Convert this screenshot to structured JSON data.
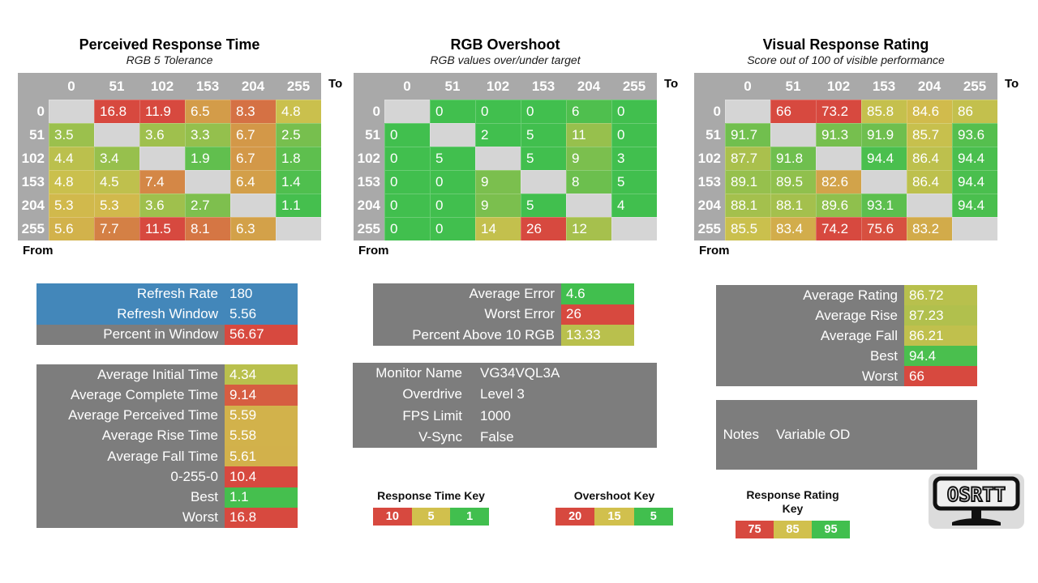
{
  "palette": {
    "green": "#41bf4e",
    "yellow": "#d1c04d",
    "red": "#d7493f",
    "blue": "#4387ba",
    "box_gray": "#7d7d7d",
    "header_gray": "#a9a9a9",
    "diagonal_gray": "#d5d5d5",
    "logo_bg": "#dcdcdc"
  },
  "chart_data": [
    {
      "type": "heatmap",
      "title": "Perceived Response Time",
      "subtitle": "RGB 5 Tolerance",
      "x_label": "To",
      "y_label": "From",
      "categories": [
        "0",
        "51",
        "102",
        "153",
        "204",
        "255"
      ],
      "color_stops": [
        [
          1,
          "#41bf4e"
        ],
        [
          5,
          "#d1c04d"
        ],
        [
          10,
          "#d7493f"
        ]
      ],
      "rows": [
        [
          null,
          16.8,
          11.9,
          6.5,
          8.3,
          4.8
        ],
        [
          3.5,
          null,
          3.6,
          3.3,
          6.7,
          2.5
        ],
        [
          4.4,
          3.4,
          null,
          1.9,
          6.7,
          1.8
        ],
        [
          4.8,
          4.5,
          7.4,
          null,
          6.4,
          1.4
        ],
        [
          5.3,
          5.3,
          3.6,
          2.7,
          null,
          1.1
        ],
        [
          5.6,
          7.7,
          11.5,
          8.1,
          6.3,
          null
        ]
      ]
    },
    {
      "type": "heatmap",
      "title": "RGB Overshoot",
      "subtitle": "RGB values over/under target",
      "x_label": "To",
      "y_label": "From",
      "categories": [
        "0",
        "51",
        "102",
        "153",
        "204",
        "255"
      ],
      "color_stops": [
        [
          5,
          "#41bf4e"
        ],
        [
          15,
          "#d1c04d"
        ],
        [
          20,
          "#d7493f"
        ]
      ],
      "rows": [
        [
          null,
          0,
          0,
          0,
          6,
          0
        ],
        [
          0,
          null,
          2,
          5,
          11,
          0
        ],
        [
          0,
          5,
          null,
          5,
          9,
          3
        ],
        [
          0,
          0,
          9,
          null,
          8,
          5
        ],
        [
          0,
          0,
          9,
          5,
          null,
          4
        ],
        [
          0,
          0,
          14,
          26,
          12,
          null
        ]
      ]
    },
    {
      "type": "heatmap",
      "title": "Visual Response Rating",
      "subtitle": "Score out of 100 of visible performance",
      "x_label": "To",
      "y_label": "From",
      "categories": [
        "0",
        "51",
        "102",
        "153",
        "204",
        "255"
      ],
      "color_stops": [
        [
          75,
          "#d7493f"
        ],
        [
          85,
          "#d1c04d"
        ],
        [
          95,
          "#41bf4e"
        ]
      ],
      "rows": [
        [
          null,
          66,
          73.2,
          85.8,
          84.6,
          86
        ],
        [
          91.7,
          null,
          91.3,
          91.9,
          85.7,
          93.6
        ],
        [
          87.7,
          91.8,
          null,
          94.4,
          86.4,
          94.4
        ],
        [
          89.1,
          89.5,
          82.6,
          null,
          86.4,
          94.4
        ],
        [
          88.1,
          88.1,
          89.6,
          93.1,
          null,
          94.4
        ],
        [
          85.5,
          83.4,
          74.2,
          75.6,
          83.2,
          null
        ]
      ]
    }
  ],
  "summary_boxes": {
    "refresh": {
      "rows": [
        {
          "label": "Refresh Rate",
          "value": "180",
          "row_bg": "blue"
        },
        {
          "label": "Refresh Window",
          "value": "5.56",
          "row_bg": "blue"
        },
        {
          "label": "Percent in Window",
          "value": "56.67",
          "value_bg": "red"
        }
      ]
    },
    "times": {
      "scale": 0,
      "rows": [
        {
          "label": "Average Initial Time",
          "value": 4.34
        },
        {
          "label": "Average Complete Time",
          "value": 9.14
        },
        {
          "label": "Average Perceived Time",
          "value": 5.59
        },
        {
          "label": "Average Rise Time",
          "value": 5.58
        },
        {
          "label": "Average Fall Time",
          "value": 5.61
        },
        {
          "label": "0-255-0",
          "value": 10.4
        },
        {
          "label": "Best",
          "value": 1.1
        },
        {
          "label": "Worst",
          "value": 16.8
        }
      ]
    },
    "overshoot": {
      "scale": 1,
      "rows": [
        {
          "label": "Average Error",
          "value": 4.6
        },
        {
          "label": "Worst Error",
          "value": 26
        },
        {
          "label": "Percent Above 10 RGB",
          "value": 13.33
        }
      ]
    },
    "monitor": {
      "rows": [
        {
          "label": "Monitor Name",
          "value": "VG34VQL3A"
        },
        {
          "label": "Overdrive",
          "value": "Level 3"
        },
        {
          "label": "FPS Limit",
          "value": "1000"
        },
        {
          "label": "V-Sync",
          "value": "False"
        }
      ]
    },
    "rating": {
      "scale": 2,
      "rows": [
        {
          "label": "Average Rating",
          "value": 86.72
        },
        {
          "label": "Average Rise",
          "value": 87.23
        },
        {
          "label": "Average Fall",
          "value": 86.21
        },
        {
          "label": "Best",
          "value": 94.4
        },
        {
          "label": "Worst",
          "value": 66
        }
      ]
    },
    "notes": {
      "rows": [
        {
          "label": "Notes",
          "value": "Variable OD"
        }
      ]
    }
  },
  "keys": [
    {
      "title": "Response Time Key",
      "cells": [
        {
          "label": "10",
          "color": "red"
        },
        {
          "label": "5",
          "color": "yellow"
        },
        {
          "label": "1",
          "color": "green"
        }
      ]
    },
    {
      "title": "Overshoot Key",
      "cells": [
        {
          "label": "20",
          "color": "red"
        },
        {
          "label": "15",
          "color": "yellow"
        },
        {
          "label": "5",
          "color": "green"
        }
      ]
    },
    {
      "title": "Response Rating Key",
      "cells": [
        {
          "label": "75",
          "color": "red"
        },
        {
          "label": "85",
          "color": "yellow"
        },
        {
          "label": "95",
          "color": "green"
        }
      ]
    }
  ],
  "logo": {
    "text": "OSRTT"
  }
}
